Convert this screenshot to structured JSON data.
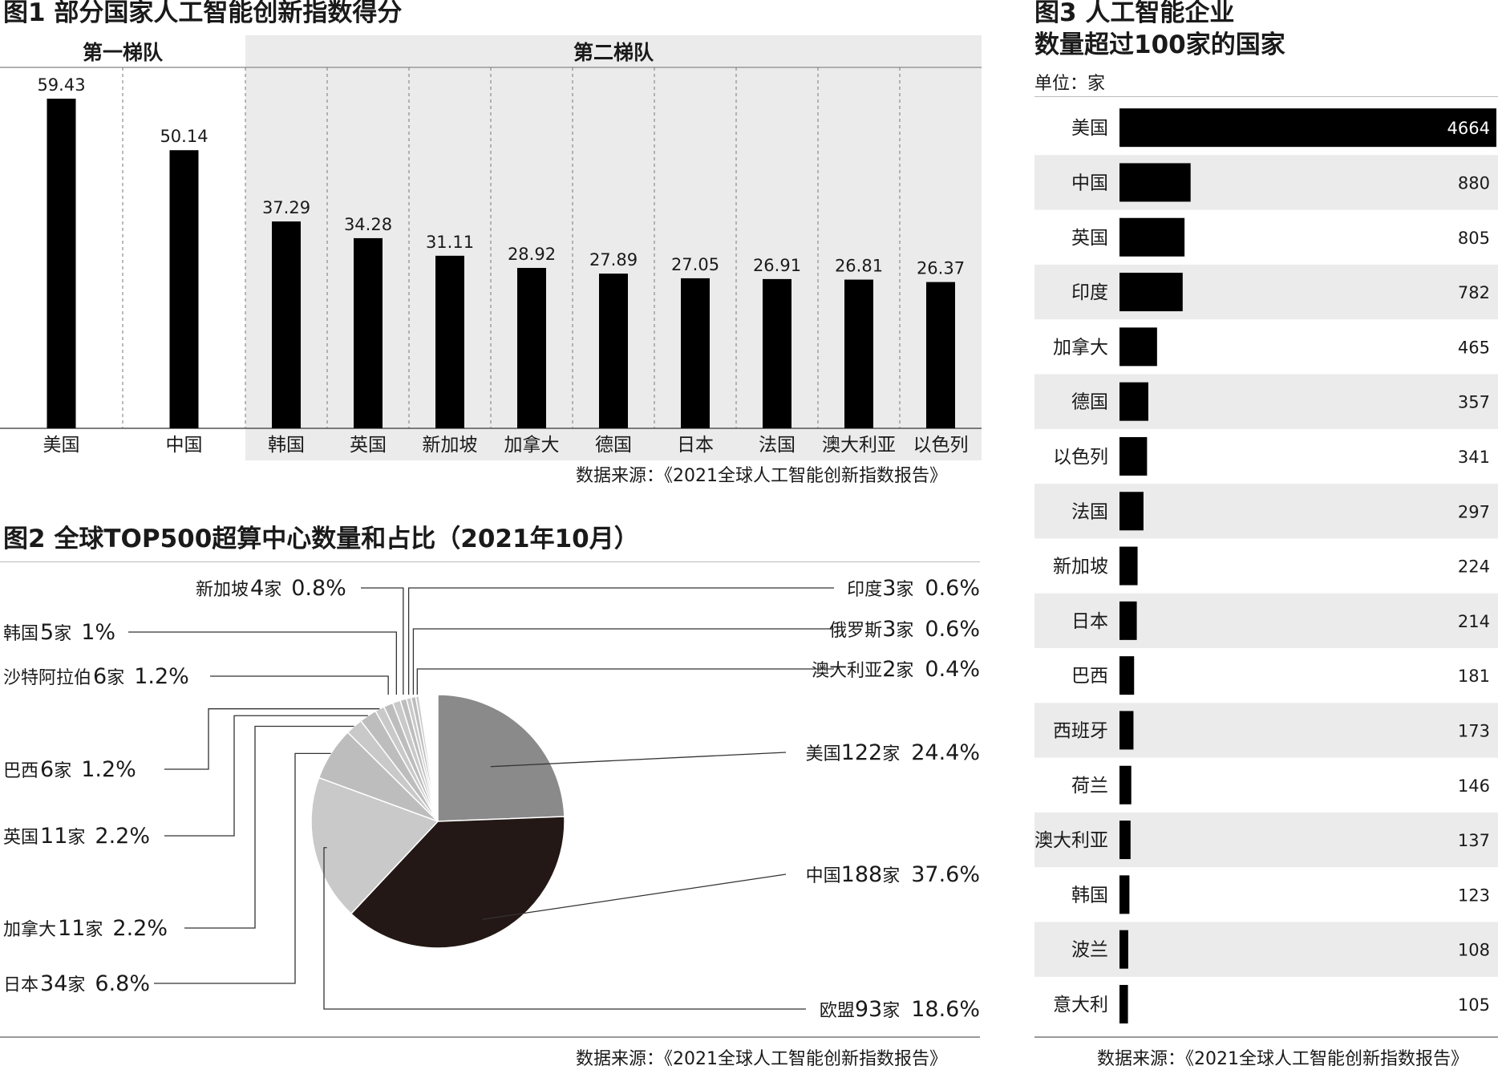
{
  "fig1": {
    "title": "图1 部分国家人工智能创新指数得分",
    "tier1_label": "第一梯队",
    "tier2_label": "第二梯队",
    "source": "数据来源：《2021全球人工智能创新指数报告》"
  },
  "fig2": {
    "title": "图2 全球TOP500超算中心数量和占比（2021年10月）",
    "source": "数据来源：《2021全球人工智能创新指数报告》"
  },
  "fig3": {
    "title_line1": "图3  人工智能企业",
    "title_line2": "数量超过100家的国家",
    "unit": "单位：家",
    "source": "数据来源：《2021全球人工智能创新指数报告》"
  },
  "chart_data": [
    {
      "type": "bar",
      "title": "图1 部分国家人工智能创新指数得分",
      "categories": [
        "美国",
        "中国",
        "韩国",
        "英国",
        "新加坡",
        "加拿大",
        "德国",
        "日本",
        "法国",
        "澳大利亚",
        "以色列"
      ],
      "values": [
        59.43,
        50.14,
        37.29,
        34.28,
        31.11,
        28.92,
        27.89,
        27.05,
        26.91,
        26.81,
        26.37
      ],
      "value_labels": [
        "59.43",
        "50.14",
        "37.29",
        "34.28",
        "31.11",
        "28.92",
        "27.89",
        "27.05",
        "26.91",
        "26.81",
        "26.37"
      ],
      "groups": [
        {
          "label": "第一梯队",
          "members": [
            "美国",
            "中国"
          ]
        },
        {
          "label": "第二梯队",
          "members": [
            "韩国",
            "英国",
            "新加坡",
            "加拿大",
            "德国",
            "日本",
            "法国",
            "澳大利亚",
            "以色列"
          ]
        }
      ],
      "ylim": [
        0,
        60
      ],
      "grid": false,
      "bar_color": "#000000",
      "tier2_background": "#ebebeb"
    },
    {
      "type": "pie",
      "title": "图2 全球TOP500超算中心数量和占比（2021年10月）",
      "slices": [
        {
          "name": "美国",
          "count": 122,
          "count_label": "122",
          "unit": "家",
          "percent_label": "24.4%",
          "value": 24.4,
          "color": "#8a8a8a"
        },
        {
          "name": "中国",
          "count": 188,
          "count_label": "188",
          "unit": "家",
          "percent_label": "37.6%",
          "value": 37.6,
          "color": "#231815"
        },
        {
          "name": "欧盟",
          "count": 93,
          "count_label": "93",
          "unit": "家",
          "percent_label": "18.6%",
          "value": 18.6,
          "color": "#c9c9c9"
        },
        {
          "name": "日本",
          "count": 34,
          "count_label": "34",
          "unit": "家",
          "percent_label": "6.8%",
          "value": 6.8,
          "color": "#bdbdbd"
        },
        {
          "name": "加拿大",
          "count": 11,
          "count_label": "11",
          "unit": "家",
          "percent_label": "2.2%",
          "value": 2.2,
          "color": "#c9c9c9"
        },
        {
          "name": "英国",
          "count": 11,
          "count_label": "11",
          "unit": "家",
          "percent_label": "2.2%",
          "value": 2.2,
          "color": "#bdbdbd"
        },
        {
          "name": "巴西",
          "count": 6,
          "count_label": "6",
          "unit": "家",
          "percent_label": "1.2%",
          "value": 1.2,
          "color": "#c9c9c9"
        },
        {
          "name": "沙特阿拉伯",
          "count": 6,
          "count_label": "6",
          "unit": "家",
          "percent_label": "1.2%",
          "value": 1.2,
          "color": "#bdbdbd"
        },
        {
          "name": "韩国",
          "count": 5,
          "count_label": "5",
          "unit": "家",
          "percent_label": "1%",
          "value": 1.0,
          "color": "#c9c9c9"
        },
        {
          "name": "新加坡",
          "count": 4,
          "count_label": "4",
          "unit": "家",
          "percent_label": "0.8%",
          "value": 0.8,
          "color": "#bdbdbd"
        },
        {
          "name": "印度",
          "count": 3,
          "count_label": "3",
          "unit": "家",
          "percent_label": "0.6%",
          "value": 0.6,
          "color": "#c9c9c9"
        },
        {
          "name": "俄罗斯",
          "count": 3,
          "count_label": "3",
          "unit": "家",
          "percent_label": "0.6%",
          "value": 0.6,
          "color": "#bdbdbd"
        },
        {
          "name": "澳大利亚",
          "count": 2,
          "count_label": "2",
          "unit": "家",
          "percent_label": "0.4%",
          "value": 0.4,
          "color": "#c9c9c9"
        }
      ],
      "start": "12 o'clock",
      "direction": "clockwise"
    },
    {
      "type": "bar",
      "orientation": "horizontal",
      "title": "图3 人工智能企业数量超过100家的国家",
      "unit": "家",
      "categories": [
        "美国",
        "中国",
        "英国",
        "印度",
        "加拿大",
        "德国",
        "以色列",
        "法国",
        "新加坡",
        "日本",
        "巴西",
        "西班牙",
        "荷兰",
        "澳大利亚",
        "韩国",
        "波兰",
        "意大利"
      ],
      "values": [
        4664,
        880,
        805,
        782,
        465,
        357,
        341,
        297,
        224,
        214,
        181,
        173,
        146,
        137,
        123,
        108,
        105
      ],
      "value_labels": [
        "4664",
        "880",
        "805",
        "782",
        "465",
        "357",
        "341",
        "297",
        "224",
        "214",
        "181",
        "173",
        "146",
        "137",
        "123",
        "108",
        "105"
      ],
      "xlim": [
        0,
        4664
      ],
      "bar_color": "#000000",
      "stripe_color": "#ebebeb"
    }
  ]
}
